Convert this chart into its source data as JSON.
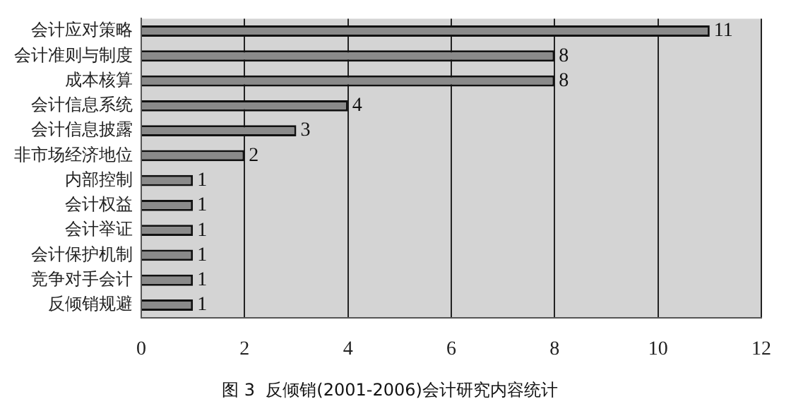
{
  "chart_data": {
    "type": "bar",
    "orientation": "horizontal",
    "title": "图 3  反倾销(2001-2006)会计研究内容统计",
    "categories": [
      "会计应对策略",
      "会计准则与制度",
      "成本核算",
      "会计信息系统",
      "会计信息披露",
      "非市场经济地位",
      "内部控制",
      "会计权益",
      "会计举证",
      "会计保护机制",
      "竞争对手会计",
      "反倾销规避"
    ],
    "values": [
      11,
      8,
      8,
      4,
      3,
      2,
      1,
      1,
      1,
      1,
      1,
      1
    ],
    "color": "#8a8a8a",
    "xlim": [
      0,
      12
    ],
    "xticks": [
      0,
      2,
      4,
      6,
      8,
      10,
      12
    ],
    "grid": "x",
    "data_labels": true
  }
}
